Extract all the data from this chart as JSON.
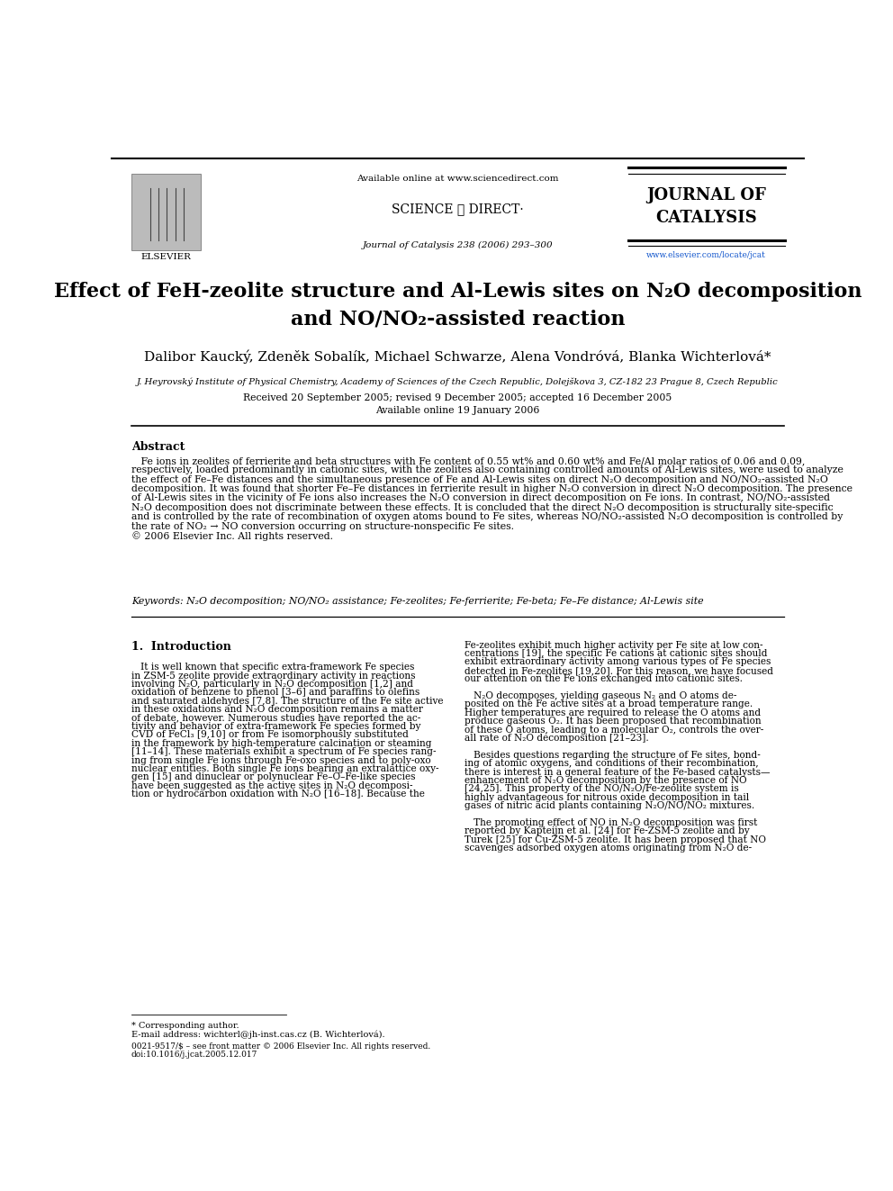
{
  "bg_color": "#ffffff",
  "page_width": 9.92,
  "page_height": 13.23,
  "header": {
    "available_text": "Available online at www.sciencedirect.com",
    "sciencedirect_text": "SCIENCE ⓓ DIRECT·",
    "journal_name": "JOURNAL OF\nCATALYSIS",
    "journal_info": "Journal of Catalysis 238 (2006) 293–300",
    "website": "www.elsevier.com/locate/jcat",
    "elsevier_text": "ELSEVIER"
  },
  "title": "Effect of FeH-zeolite structure and Al-Lewis sites on N₂O decomposition\nand NO/NO₂-assisted reaction",
  "authors": "Dalibor Kaucký, Zdeněk Sobalík, Michael Schwarze, Alena Vondróvá, Blanka Wichterlová*",
  "affiliation": "J. Heyrovský Institute of Physical Chemistry, Academy of Sciences of the Czech Republic, Dolejškova 3, CZ-182 23 Prague 8, Czech Republic",
  "received": "Received 20 September 2005; revised 9 December 2005; accepted 16 December 2005",
  "available_online": "Available online 19 January 2006",
  "abstract_title": "Abstract",
  "abstract_text": [
    "   Fe ions in zeolites of ferrierite and beta structures with Fe content of 0.55 wt% and 0.60 wt% and Fe/Al molar ratios of 0.06 and 0.09,",
    "respectively, loaded predominantly in cationic sites, with the zeolites also containing controlled amounts of Al-Lewis sites, were used to analyze",
    "the effect of Fe–Fe distances and the simultaneous presence of Fe and Al-Lewis sites on direct N₂O decomposition and NO/NO₂-assisted N₂O",
    "decomposition. It was found that shorter Fe–Fe distances in ferrierite result in higher N₂O conversion in direct N₂O decomposition. The presence",
    "of Al-Lewis sites in the vicinity of Fe ions also increases the N₂O conversion in direct decomposition on Fe ions. In contrast, NO/NO₂-assisted",
    "N₂O decomposition does not discriminate between these effects. It is concluded that the direct N₂O decomposition is structurally site-specific",
    "and is controlled by the rate of recombination of oxygen atoms bound to Fe sites, whereas NO/NO₂-assisted N₂O decomposition is controlled by",
    "the rate of NO₂ → NO conversion occurring on structure-nonspecific Fe sites.",
    "© 2006 Elsevier Inc. All rights reserved."
  ],
  "keywords": "Keywords: N₂O decomposition; NO/NO₂ assistance; Fe-zeolites; Fe-ferrierite; Fe-beta; Fe–Fe distance; Al-Lewis site",
  "section1_title": "1.  Introduction",
  "intro_left": [
    "   It is well known that specific extra-framework Fe species",
    "in ZSM-5 zeolite provide extraordinary activity in reactions",
    "involving N₂O, particularly in N₂O decomposition [1,2] and",
    "oxidation of benzene to phenol [3–6] and paraffins to olefins",
    "and saturated aldehydes [7,8]. The structure of the Fe site active",
    "in these oxidations and N₂O decomposition remains a matter",
    "of debate, however. Numerous studies have reported the ac-",
    "tivity and behavior of extra-framework Fe species formed by",
    "CVD of FeCl₃ [9,10] or from Fe isomorphously substituted",
    "in the framework by high-temperature calcination or steaming",
    "[11–14]. These materials exhibit a spectrum of Fe species rang-",
    "ing from single Fe ions through Fe-oxo species and to poly-oxo",
    "nuclear entities. Both single Fe ions bearing an extralattice oxy-",
    "gen [15] and dinuclear or polynuclear Fe–O–Fe-like species",
    "have been suggested as the active sites in N₂O decomposi-",
    "tion or hydrocarbon oxidation with N₂O [16–18]. Because the"
  ],
  "intro_right": [
    "Fe-zeolites exhibit much higher activity per Fe site at low con-",
    "centrations [19], the specific Fe cations at cationic sites should",
    "exhibit extraordinary activity among various types of Fe species",
    "detected in Fe-zeolites [19,20]. For this reason, we have focused",
    "our attention on the Fe ions exchanged into cationic sites.",
    "",
    "   N₂O decomposes, yielding gaseous N₂ and O atoms de-",
    "posited on the Fe active sites at a broad temperature range.",
    "Higher temperatures are required to release the O atoms and",
    "produce gaseous O₂. It has been proposed that recombination",
    "of these O atoms, leading to a molecular O₂, controls the over-",
    "all rate of N₂O decomposition [21–23].",
    "",
    "   Besides questions regarding the structure of Fe sites, bond-",
    "ing of atomic oxygens, and conditions of their recombination,",
    "there is interest in a general feature of the Fe-based catalysts—",
    "enhancement of N₂O decomposition by the presence of NO",
    "[24,25]. This property of the NO/N₂O/Fe-zeolite system is",
    "highly advantageous for nitrous oxide decomposition in tail",
    "gases of nitric acid plants containing N₂O/NO/NO₂ mixtures.",
    "",
    "   The promoting effect of NO in N₂O decomposition was first",
    "reported by Kapteijn et al. [24] for Fe-ZSM-5 zeolite and by",
    "Turek [25] for Cu-ZSM-5 zeolite. It has been proposed that NO",
    "scavenges adsorbed oxygen atoms originating from N₂O de-"
  ],
  "footnote_star": "* Corresponding author.",
  "footnote_email": "E-mail address: wichterl@jh-inst.cas.cz (B. Wichterlová).",
  "footnote_issn": "0021-9517/$ – see front matter © 2006 Elsevier Inc. All rights reserved.",
  "footnote_doi": "doi:10.1016/j.jcat.2005.12.017"
}
